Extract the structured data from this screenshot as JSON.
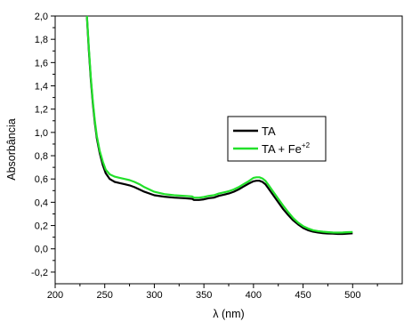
{
  "chart_data": {
    "type": "line",
    "xlabel": "λ (nm)",
    "ylabel": "Absorbância",
    "xlim": [
      200,
      550
    ],
    "ylim": [
      -0.3,
      2.0
    ],
    "x_ticks": [
      200,
      250,
      300,
      350,
      400,
      450,
      500
    ],
    "x_tick_labels": [
      "200",
      "250",
      "300",
      "350",
      "400",
      "450",
      "500"
    ],
    "y_ticks": [
      -0.2,
      0.0,
      0.2,
      0.4,
      0.6,
      0.8,
      1.0,
      1.2,
      1.4,
      1.6,
      1.8,
      2.0
    ],
    "y_tick_labels": [
      "-0,2",
      "0,0",
      "0,2",
      "0,4",
      "0,6",
      "0,8",
      "1,0",
      "1,2",
      "1,4",
      "1,6",
      "1,8",
      "2,0"
    ],
    "grid": false,
    "legend_placement": "center-right",
    "series": [
      {
        "name": "TA",
        "name_sup": "",
        "color": "#000000",
        "x": [
          232,
          234,
          236,
          238,
          240,
          242,
          245,
          248,
          251,
          255,
          260,
          265,
          270,
          275,
          280,
          285,
          290,
          300,
          310,
          320,
          330,
          338,
          340,
          345,
          350,
          355,
          360,
          365,
          370,
          375,
          380,
          385,
          390,
          395,
          400,
          403,
          406,
          409,
          412,
          415,
          420,
          425,
          430,
          435,
          440,
          445,
          450,
          455,
          460,
          465,
          470,
          475,
          480,
          485,
          490,
          495,
          500
        ],
        "y": [
          1.99,
          1.7,
          1.45,
          1.25,
          1.08,
          0.95,
          0.82,
          0.72,
          0.65,
          0.6,
          0.575,
          0.565,
          0.555,
          0.545,
          0.53,
          0.51,
          0.49,
          0.46,
          0.448,
          0.44,
          0.435,
          0.43,
          0.42,
          0.42,
          0.425,
          0.435,
          0.44,
          0.455,
          0.465,
          0.475,
          0.49,
          0.51,
          0.535,
          0.56,
          0.58,
          0.585,
          0.585,
          0.575,
          0.555,
          0.52,
          0.46,
          0.4,
          0.34,
          0.29,
          0.245,
          0.21,
          0.18,
          0.16,
          0.148,
          0.14,
          0.135,
          0.132,
          0.13,
          0.128,
          0.128,
          0.13,
          0.133
        ]
      },
      {
        "name": "TA + Fe",
        "name_sup": "+2",
        "color": "#22e02a",
        "x": [
          232,
          234,
          236,
          238,
          240,
          242,
          245,
          248,
          251,
          255,
          260,
          265,
          270,
          275,
          280,
          285,
          290,
          300,
          310,
          320,
          330,
          338,
          340,
          345,
          350,
          355,
          360,
          365,
          370,
          375,
          380,
          385,
          390,
          395,
          400,
          403,
          406,
          409,
          412,
          415,
          420,
          425,
          430,
          435,
          440,
          445,
          450,
          455,
          460,
          465,
          470,
          475,
          480,
          485,
          490,
          495,
          500
        ],
        "y": [
          2.0,
          1.72,
          1.47,
          1.27,
          1.1,
          0.97,
          0.84,
          0.75,
          0.68,
          0.64,
          0.62,
          0.61,
          0.6,
          0.59,
          0.575,
          0.555,
          0.53,
          0.49,
          0.47,
          0.46,
          0.455,
          0.45,
          0.44,
          0.44,
          0.445,
          0.455,
          0.46,
          0.475,
          0.485,
          0.495,
          0.51,
          0.53,
          0.555,
          0.58,
          0.61,
          0.615,
          0.615,
          0.605,
          0.585,
          0.55,
          0.49,
          0.43,
          0.37,
          0.315,
          0.265,
          0.225,
          0.195,
          0.175,
          0.16,
          0.152,
          0.147,
          0.143,
          0.14,
          0.139,
          0.14,
          0.143,
          0.145
        ]
      }
    ]
  }
}
